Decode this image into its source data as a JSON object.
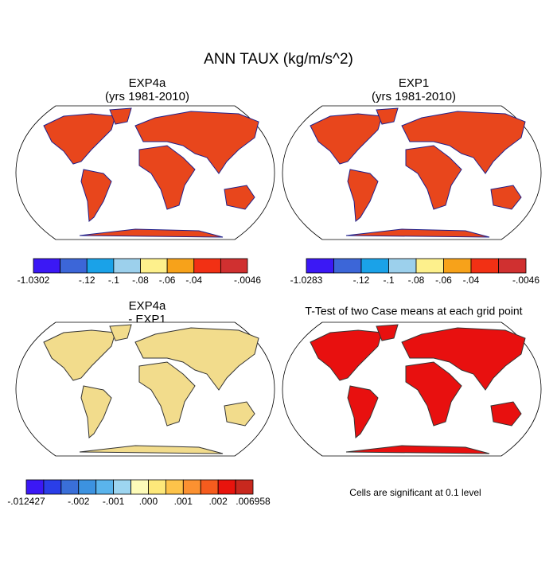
{
  "header": {
    "title": "ANN TAUX (kg/m/s^2)"
  },
  "panels": [
    {
      "title": [
        "EXP4a",
        "(yrs 1981-2010)"
      ],
      "colorbar": {
        "colors": [
          "#3b18f5",
          "#3c66d8",
          "#1aa2e8",
          "#9cd0ec",
          "#fdf08c",
          "#f7a21a",
          "#f23014",
          "#d03030"
        ],
        "labels": [
          "-1.0302",
          null,
          "-.12",
          "-.1",
          "-.08",
          "-.06",
          "-.04",
          null,
          "-.0046"
        ]
      }
    },
    {
      "title": [
        "EXP1",
        "(yrs 1981-2010)"
      ],
      "colorbar": {
        "colors": [
          "#3b18f5",
          "#3c66d8",
          "#1aa2e8",
          "#9cd0ec",
          "#fdf08c",
          "#f7a21a",
          "#f23014",
          "#d03030"
        ],
        "labels": [
          "-1.0283",
          null,
          "-.12",
          "-.1",
          "-.08",
          "-.06",
          "-.04",
          null,
          "-.0046"
        ]
      }
    },
    {
      "title": [
        "EXP4a",
        "- EXP1"
      ],
      "colorbar": {
        "colors": [
          "#3b18f5",
          "#2a3ee8",
          "#3a6fd8",
          "#3c92e0",
          "#5ab4ec",
          "#9dd5f0",
          "#fdfbb9",
          "#fde87a",
          "#fdc34a",
          "#fb9131",
          "#f55c1e",
          "#e8140d",
          "#c8281e"
        ],
        "labels": [
          "-.012427",
          null,
          null,
          "-.002",
          null,
          "-.001",
          null,
          ".000",
          null,
          ".001",
          null,
          ".002",
          null,
          ".006958"
        ]
      }
    },
    {
      "title": [
        "T-Test of two Case means at each grid point"
      ],
      "note": "Cells are significant at 0.1 level"
    }
  ]
}
